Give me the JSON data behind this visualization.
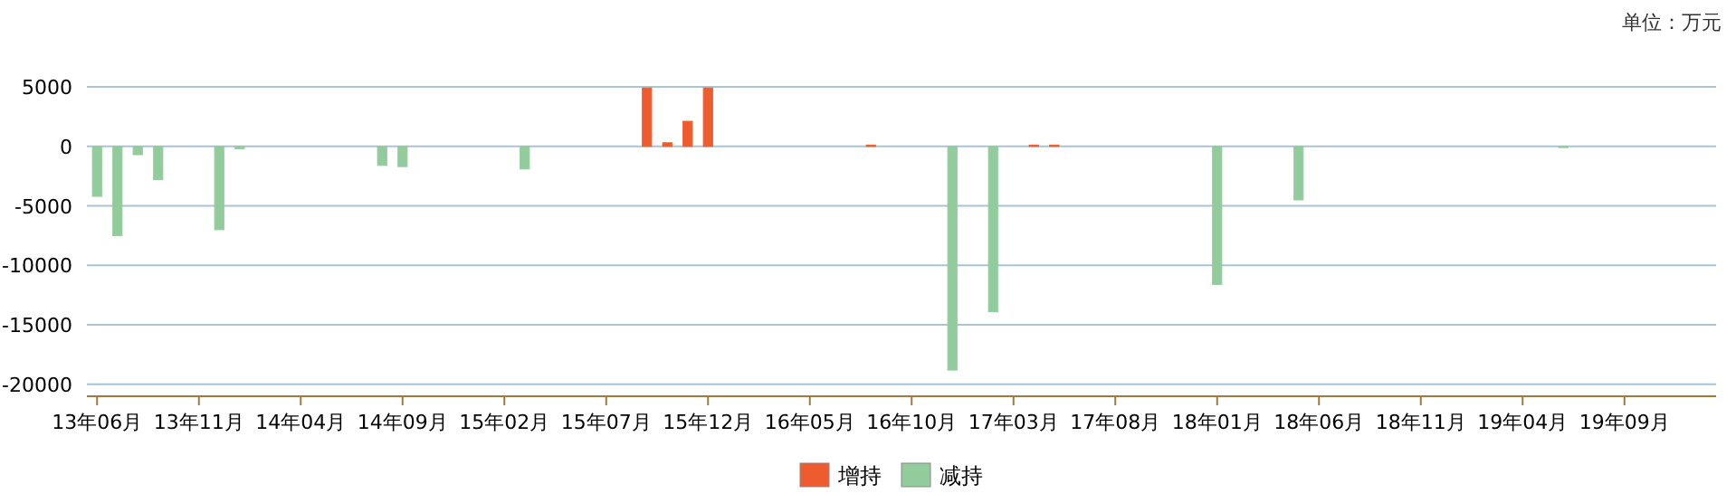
{
  "chart_data": {
    "type": "bar",
    "stacked": true,
    "grid": "y",
    "legend": "bottom",
    "annotations": [
      "单位：万元"
    ],
    "categories": [
      "13年06月",
      null,
      null,
      null,
      null,
      "13年11月",
      null,
      null,
      null,
      null,
      "14年04月",
      null,
      null,
      null,
      null,
      "14年09月",
      null,
      null,
      null,
      null,
      "15年02月",
      null,
      null,
      null,
      null,
      "15年07月",
      null,
      null,
      null,
      null,
      "15年12月",
      null,
      null,
      null,
      null,
      "16年05月",
      null,
      null,
      null,
      null,
      "16年10月",
      null,
      null,
      null,
      null,
      "17年03月",
      null,
      null,
      null,
      null,
      "17年08月",
      null,
      null,
      null,
      null,
      "18年01月",
      null,
      null,
      null,
      null,
      "18年06月",
      null,
      null,
      null,
      null,
      "18年11月",
      null,
      null,
      null,
      null,
      "19年04月",
      null,
      null,
      null,
      null,
      "19年09月",
      null,
      null,
      null,
      null
    ],
    "ylim": [
      -21000,
      5000
    ],
    "yticks": [
      -20000,
      -15000,
      -10000,
      -5000,
      0,
      5000
    ],
    "series": [
      {
        "name": "增持",
        "color": "#ee5b2e",
        "values": [
          null,
          null,
          null,
          null,
          null,
          null,
          null,
          null,
          null,
          null,
          null,
          null,
          null,
          null,
          null,
          null,
          null,
          null,
          null,
          null,
          null,
          null,
          null,
          null,
          null,
          null,
          null,
          4900,
          300,
          2100,
          4900,
          null,
          null,
          null,
          null,
          null,
          null,
          null,
          100,
          null,
          null,
          null,
          null,
          null,
          null,
          null,
          100,
          100,
          null,
          null,
          null,
          null,
          null,
          null,
          null,
          null,
          null,
          null,
          null,
          null,
          null,
          null,
          null,
          null,
          null,
          null,
          null,
          null,
          null,
          null,
          null,
          null,
          null,
          null,
          null,
          null,
          null,
          null,
          null,
          null
        ]
      },
      {
        "name": "减持",
        "color": "#93cc9c",
        "values": [
          -4200,
          -7500,
          -700,
          -2800,
          null,
          null,
          -7000,
          -200,
          null,
          null,
          null,
          null,
          null,
          null,
          -1600,
          -1700,
          null,
          null,
          null,
          null,
          null,
          -1900,
          null,
          null,
          null,
          null,
          null,
          null,
          null,
          null,
          null,
          null,
          null,
          null,
          null,
          null,
          null,
          null,
          null,
          null,
          null,
          null,
          -18800,
          null,
          -13900,
          null,
          null,
          null,
          null,
          null,
          null,
          null,
          null,
          null,
          null,
          -11600,
          null,
          null,
          null,
          -4500,
          null,
          null,
          null,
          null,
          null,
          null,
          null,
          null,
          null,
          null,
          null,
          null,
          -100,
          null,
          null,
          null,
          null,
          null,
          null,
          null
        ]
      }
    ]
  }
}
